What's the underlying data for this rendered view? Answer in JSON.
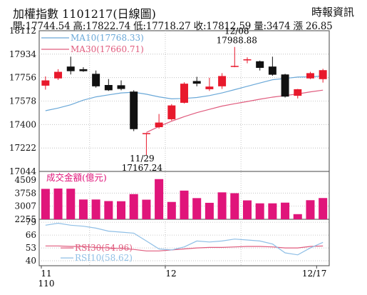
{
  "header": {
    "title": "加權指數 1101217(日線圖)",
    "source": "時報資訊",
    "stats": "開:17744.54 高:17822.74 低:17718.27 收:17812.59 量:3474 漲 26.85"
  },
  "colors": {
    "up": "#e8192c",
    "down": "#111111",
    "ma10": "#6aa8d8",
    "ma30": "#e05c7e",
    "volume": "#e0157a",
    "rsi30": "#e05c7e",
    "rsi10": "#8fbfe6",
    "grid": "#b8b8b8"
  },
  "chart_data": [
    {
      "type": "candlestick",
      "legend": [
        {
          "label": "MA10(17768.33)",
          "color": "#6aa8d8"
        },
        {
          "label": "MA30(17660.71)",
          "color": "#e05c7e"
        }
      ],
      "yticks": [
        18112,
        17934,
        17756,
        17578,
        17400,
        17222,
        17044
      ],
      "ylim": [
        17044,
        18112
      ],
      "annotations": [
        {
          "text": "12/08",
          "text2": "17988.88",
          "index": 15,
          "price": 17988.88
        },
        {
          "text": "11/29",
          "text2": "17167.24",
          "index": 8,
          "price": 17167.24
        }
      ],
      "candles": [
        {
          "o": 17695,
          "h": 17765,
          "l": 17665,
          "c": 17735
        },
        {
          "o": 17750,
          "h": 17820,
          "l": 17738,
          "c": 17800
        },
        {
          "o": 17840,
          "h": 17915,
          "l": 17780,
          "c": 17805
        },
        {
          "o": 17820,
          "h": 17835,
          "l": 17800,
          "c": 17805
        },
        {
          "o": 17785,
          "h": 17810,
          "l": 17680,
          "c": 17690
        },
        {
          "o": 17700,
          "h": 17745,
          "l": 17655,
          "c": 17660
        },
        {
          "o": 17698,
          "h": 17735,
          "l": 17660,
          "c": 17670
        },
        {
          "o": 17650,
          "h": 17660,
          "l": 17350,
          "c": 17365
        },
        {
          "o": 17328,
          "h": 17335,
          "l": 17167.24,
          "c": 17335
        },
        {
          "o": 17380,
          "h": 17480,
          "l": 17370,
          "c": 17415
        },
        {
          "o": 17440,
          "h": 17555,
          "l": 17430,
          "c": 17545
        },
        {
          "o": 17565,
          "h": 17720,
          "l": 17560,
          "c": 17710
        },
        {
          "o": 17730,
          "h": 17762,
          "l": 17690,
          "c": 17710
        },
        {
          "o": 17668,
          "h": 17755,
          "l": 17655,
          "c": 17688
        },
        {
          "o": 17690,
          "h": 17790,
          "l": 17670,
          "c": 17768
        },
        {
          "o": 17842,
          "h": 17988.88,
          "l": 17835,
          "c": 17845
        },
        {
          "o": 17890,
          "h": 17910,
          "l": 17865,
          "c": 17895
        },
        {
          "o": 17880,
          "h": 17885,
          "l": 17810,
          "c": 17830
        },
        {
          "o": 17840,
          "h": 17915,
          "l": 17770,
          "c": 17778
        },
        {
          "o": 17780,
          "h": 17785,
          "l": 17605,
          "c": 17612
        },
        {
          "o": 17618,
          "h": 17670,
          "l": 17598,
          "c": 17668
        },
        {
          "o": 17750,
          "h": 17800,
          "l": 17745,
          "c": 17790
        },
        {
          "o": 17744.54,
          "h": 17822.74,
          "l": 17718.27,
          "c": 17812.59
        }
      ],
      "ma10": [
        17505,
        17525,
        17550,
        17585,
        17610,
        17625,
        17640,
        17645,
        17630,
        17610,
        17595,
        17598,
        17605,
        17620,
        17640,
        17665,
        17690,
        17715,
        17740,
        17750,
        17760,
        17762,
        17768.33
      ],
      "ma30": [
        null,
        null,
        null,
        null,
        null,
        null,
        null,
        null,
        17340,
        17385,
        17425,
        17460,
        17490,
        17515,
        17540,
        17558,
        17575,
        17592,
        17608,
        17620,
        17632,
        17648,
        17660.71
      ]
    },
    {
      "type": "bar",
      "title": "成交金額(億元)",
      "yticks": [
        4509,
        3758,
        3007,
        2255
      ],
      "ylim": [
        2255,
        4509
      ],
      "values": [
        4000,
        4020,
        4010,
        3390,
        3390,
        3300,
        3290,
        3700,
        3380,
        4560,
        3250,
        3900,
        3470,
        3200,
        3800,
        3750,
        3340,
        3170,
        3170,
        3210,
        2550,
        3350,
        3474
      ]
    },
    {
      "type": "line",
      "yticks": [
        79,
        66,
        53,
        40
      ],
      "ylim": [
        35,
        82
      ],
      "series": [
        {
          "name": "RSI30(54.96)",
          "color": "#e05c7e",
          "values": [
            55,
            55,
            54.5,
            54.5,
            53.5,
            53,
            52.5,
            51.5,
            50,
            50,
            51,
            52,
            53,
            53.5,
            53.5,
            54,
            54.5,
            54.5,
            54,
            53,
            53,
            54.5,
            54.96
          ]
        },
        {
          "name": "RSI10(58.62)",
          "color": "#8fbfe6",
          "values": [
            76,
            78,
            76,
            75,
            73,
            70,
            69,
            68,
            60,
            52,
            51,
            54,
            60,
            59,
            60,
            62,
            61,
            60,
            57,
            48,
            46,
            53,
            58.62
          ]
        }
      ],
      "xticks": [
        {
          "label": "11",
          "sub": "110",
          "index": 0
        },
        {
          "label": "12",
          "index": 10
        },
        {
          "label": "12/17",
          "index": 22
        }
      ]
    }
  ]
}
